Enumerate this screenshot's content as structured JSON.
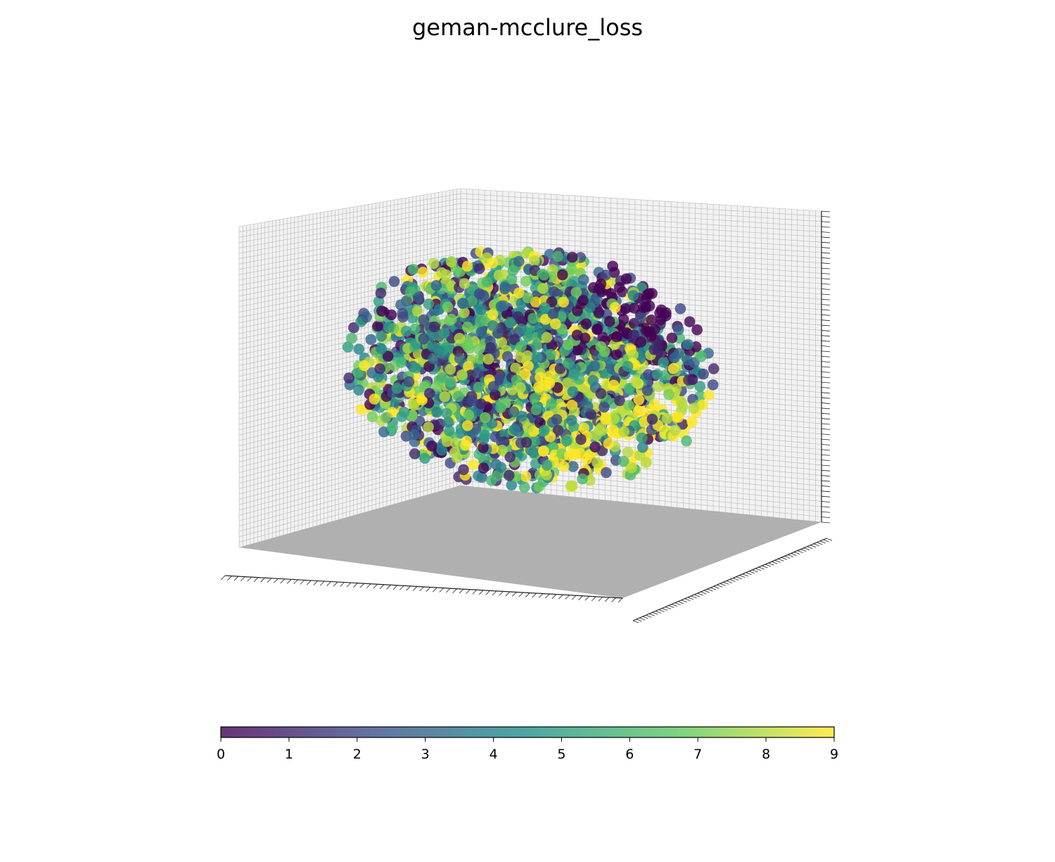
{
  "chart_data": {
    "type": "scatter",
    "projection": "3d",
    "title": "geman-mcclure_loss",
    "xlabel": "",
    "ylabel": "",
    "zlabel": "",
    "grid": true,
    "pane_colors": {
      "back": "#f2f2f2",
      "floor": "#b0b0b0",
      "gridline": "#b8b8b8"
    },
    "colormap": "viridis",
    "colormap_stops": [
      "#440154",
      "#3b528b",
      "#21918c",
      "#5ec962",
      "#fde725"
    ],
    "point_alpha": 0.8,
    "color_range": [
      0,
      9
    ],
    "colorbar": {
      "orientation": "horizontal",
      "placement": "bottom",
      "ticks": [
        "0",
        "1",
        "2",
        "3",
        "4",
        "5",
        "6",
        "7",
        "8",
        "9"
      ]
    },
    "point_cloud": {
      "shape": "ellipsoid",
      "approx_points": 2000,
      "class_values": [
        0,
        1,
        2,
        3,
        4,
        5,
        6,
        7,
        8,
        9
      ]
    }
  }
}
